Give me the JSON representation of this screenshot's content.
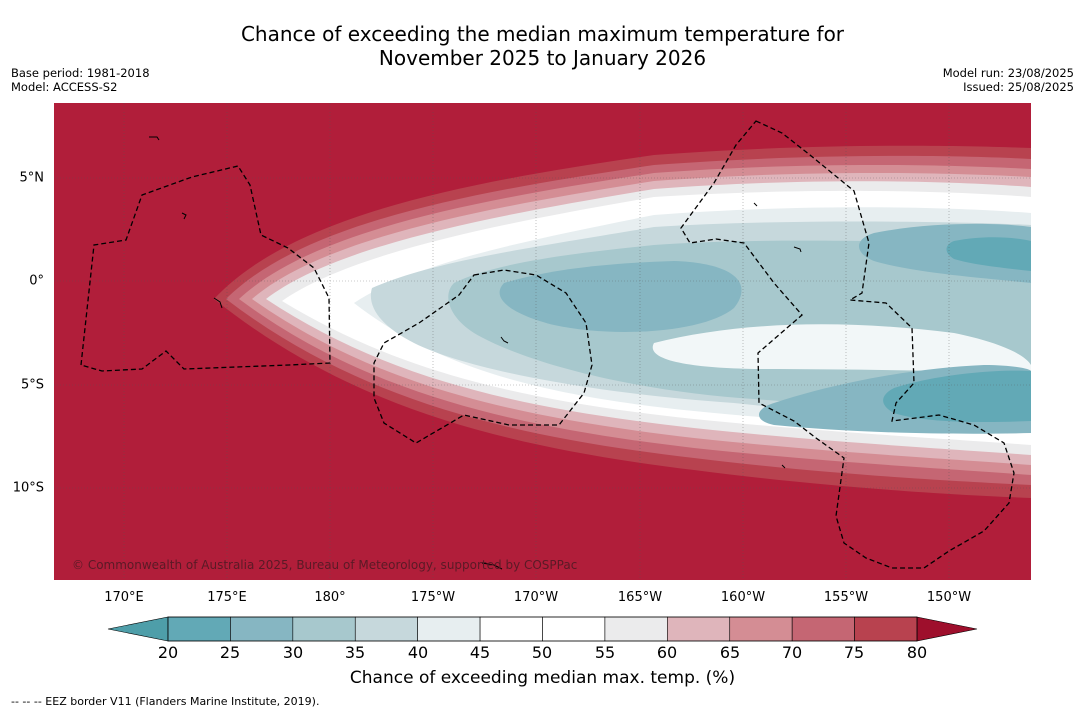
{
  "header": {
    "title_line1": "Chance of exceeding the median maximum temperature for",
    "title_line2": "November 2025 to January 2026",
    "base_period": "Base period: 1981-2018",
    "model": "Model: ACCESS-S2",
    "model_run": "Model run: 23/08/2025",
    "issued": "Issued: 25/08/2025"
  },
  "map": {
    "lon_labels": [
      "170°E",
      "175°E",
      "180°",
      "175°W",
      "170°W",
      "165°W",
      "160°W",
      "155°W",
      "150°W"
    ],
    "lat_labels": [
      "5°N",
      "0°",
      "5°S",
      "10°S"
    ],
    "copyright": "© Commonwealth of Australia 2025, Bureau of Meteorology, supported by COSPPac",
    "colors": {
      "c20": "#62a9b6",
      "c25": "#86b6c2",
      "c30": "#a7c8cd",
      "c35": "#c6d8dc",
      "c40": "#e7eef0",
      "c45": "#ffffff",
      "c50": "#ffffff",
      "c55": "#ebebec",
      "c60": "#dfb5bb",
      "c65": "#d48d94",
      "c70": "#c56673",
      "c75": "#b8424f",
      "c80": "#b11e3a"
    }
  },
  "colorbar": {
    "ticks": [
      "20",
      "25",
      "30",
      "35",
      "40",
      "45",
      "50",
      "55",
      "60",
      "65",
      "70",
      "75",
      "80"
    ],
    "label": "Chance of exceeding median max. temp. (%)",
    "under_color": "#4e9ea9",
    "over_color": "#9e0f2c",
    "colors": [
      "#62a9b6",
      "#86b6c2",
      "#a7c8cd",
      "#c6d8dc",
      "#e7eef0",
      "#ffffff",
      "#ffffff",
      "#ebebec",
      "#dfb5bb",
      "#d48d94",
      "#c56673",
      "#b8424f"
    ]
  },
  "footnote": "--  --  -- EEZ border V11 (Flanders Marine Institute, 2019)."
}
